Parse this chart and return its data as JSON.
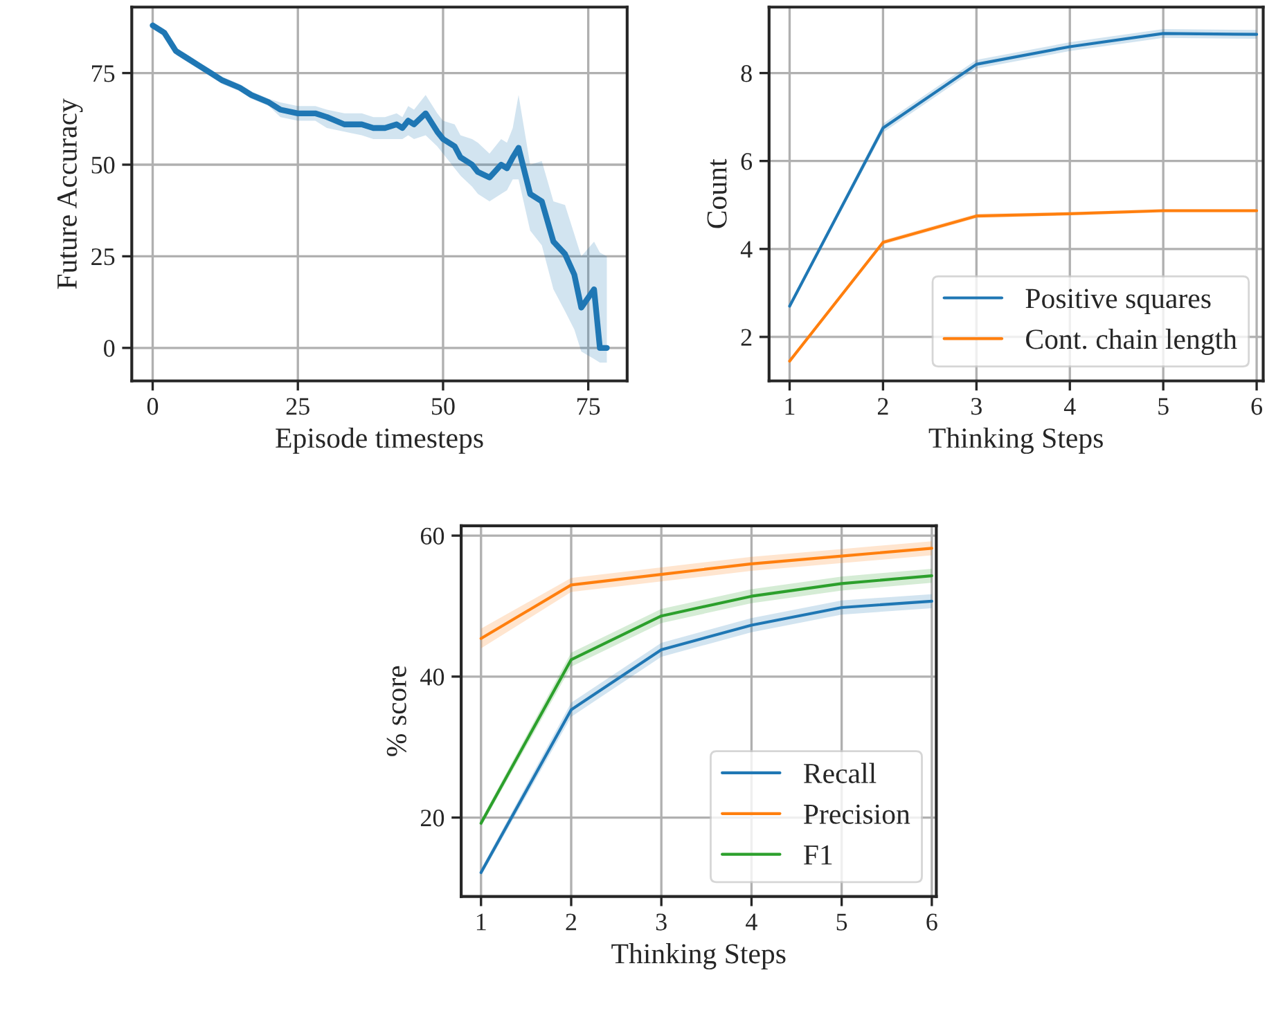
{
  "chart_data": [
    {
      "type": "line",
      "xlabel": "Episode timesteps",
      "ylabel": "Future Accuracy",
      "xlim": [
        -3.6,
        81.7
      ],
      "ylim": [
        -9,
        93
      ],
      "xticks": [
        0,
        25,
        50,
        75
      ],
      "yticks": [
        0,
        25,
        50,
        75
      ],
      "grid": true,
      "legend": false,
      "series": [
        {
          "color": "#1f77b4",
          "x": [
            0,
            2,
            4,
            6,
            8,
            10,
            12,
            15,
            17,
            20,
            22,
            25,
            28,
            30,
            33,
            36,
            38,
            40,
            42,
            43,
            44,
            45,
            47,
            49,
            50,
            52,
            53,
            55,
            56,
            58,
            60,
            61,
            62,
            63,
            65,
            67,
            69,
            71,
            72.6,
            73.8,
            76,
            77,
            78.2
          ],
          "values": [
            88,
            86,
            81,
            79,
            77,
            75,
            73,
            71,
            69,
            67,
            65,
            64,
            64,
            63,
            61,
            61,
            60,
            60,
            61,
            60,
            62,
            61,
            64,
            59,
            57,
            55,
            52,
            50,
            48,
            46.5,
            50,
            49,
            52,
            54.6,
            42,
            40,
            29,
            25.6,
            20,
            11,
            16,
            0,
            0
          ],
          "lower": [
            87,
            85,
            80,
            78,
            76,
            74,
            72,
            70,
            68,
            66,
            63,
            62,
            62,
            60,
            59,
            58,
            57,
            57,
            57,
            57,
            58,
            57,
            58,
            55,
            53,
            49,
            47,
            44,
            42,
            40,
            42,
            43,
            46,
            46,
            32,
            28,
            16,
            10,
            5,
            -1,
            -3,
            -4,
            -4
          ],
          "upper": [
            89,
            87,
            82,
            80,
            78,
            76,
            74,
            72,
            70,
            68,
            67,
            66,
            66,
            65,
            64,
            64,
            63,
            63,
            64,
            63,
            66,
            65,
            69,
            64,
            62,
            61,
            58,
            57,
            56,
            53,
            57,
            56,
            60,
            69,
            50,
            51,
            40,
            39,
            31,
            25,
            29,
            26,
            25
          ]
        }
      ]
    },
    {
      "type": "line",
      "xlabel": "Thinking Steps",
      "ylabel": "Count",
      "xlim": [
        0.78,
        6.07
      ],
      "ylim": [
        1.0,
        9.5
      ],
      "xticks": [
        1,
        2,
        3,
        4,
        5,
        6
      ],
      "yticks": [
        2,
        4,
        6,
        8
      ],
      "grid": true,
      "legend": "lower right",
      "x": [
        1,
        2,
        3,
        4,
        5,
        6
      ],
      "series": [
        {
          "name": "Positive squares",
          "color": "#1f77b4",
          "values": [
            2.7,
            6.75,
            8.2,
            8.6,
            8.9,
            8.88
          ],
          "lower": [
            2.65,
            6.65,
            8.1,
            8.5,
            8.8,
            8.78
          ],
          "upper": [
            2.75,
            6.85,
            8.3,
            8.7,
            9.0,
            8.98
          ]
        },
        {
          "name": "Cont. chain length",
          "color": "#ff7f0e",
          "values": [
            1.45,
            4.15,
            4.75,
            4.8,
            4.87,
            4.87
          ],
          "lower": [
            1.42,
            4.1,
            4.7,
            4.76,
            4.83,
            4.83
          ],
          "upper": [
            1.48,
            4.2,
            4.8,
            4.84,
            4.91,
            4.91
          ]
        }
      ]
    },
    {
      "type": "line",
      "xlabel": "Thinking Steps",
      "ylabel": "% score",
      "xlim": [
        0.78,
        6.05
      ],
      "ylim": [
        8.8,
        61.4
      ],
      "xticks": [
        1,
        2,
        3,
        4,
        5,
        6
      ],
      "yticks": [
        20,
        40,
        60
      ],
      "grid": true,
      "legend": "lower right",
      "x": [
        1,
        2,
        3,
        4,
        5,
        6
      ],
      "series": [
        {
          "name": "Recall",
          "color": "#1f77b4",
          "values": [
            12.2,
            35.3,
            43.8,
            47.3,
            49.8,
            50.7
          ],
          "lower": [
            11.7,
            34.3,
            42.8,
            46.3,
            48.8,
            49.7
          ],
          "upper": [
            12.7,
            36.3,
            44.8,
            48.3,
            50.8,
            51.7
          ]
        },
        {
          "name": "Precision",
          "color": "#ff7f0e",
          "values": [
            45.4,
            53.0,
            54.5,
            56.0,
            57.1,
            58.2
          ],
          "lower": [
            44.0,
            52.0,
            53.5,
            55.0,
            56.1,
            57.2
          ],
          "upper": [
            46.8,
            54.0,
            55.5,
            57.0,
            58.1,
            59.2
          ]
        },
        {
          "name": "F1",
          "color": "#2ca02c",
          "values": [
            19.2,
            42.4,
            48.6,
            51.4,
            53.2,
            54.3
          ],
          "lower": [
            18.7,
            41.4,
            47.6,
            50.4,
            52.2,
            53.3
          ],
          "upper": [
            19.7,
            43.4,
            49.6,
            52.4,
            54.2,
            55.3
          ]
        }
      ]
    }
  ]
}
